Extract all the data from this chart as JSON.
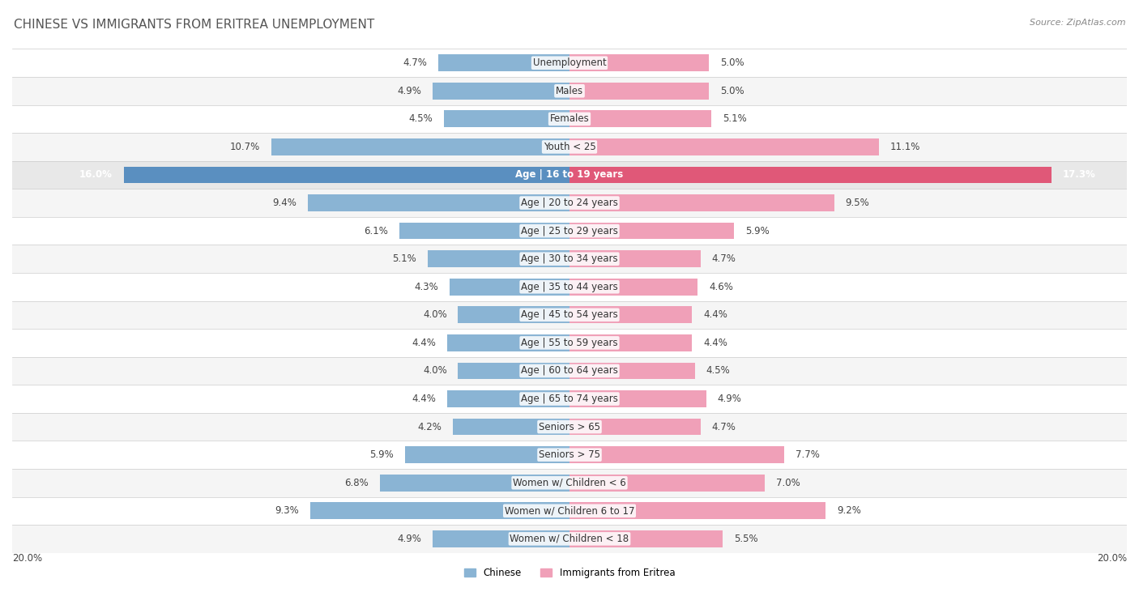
{
  "title": "CHINESE VS IMMIGRANTS FROM ERITREA UNEMPLOYMENT",
  "source": "Source: ZipAtlas.com",
  "categories": [
    "Unemployment",
    "Males",
    "Females",
    "Youth < 25",
    "Age | 16 to 19 years",
    "Age | 20 to 24 years",
    "Age | 25 to 29 years",
    "Age | 30 to 34 years",
    "Age | 35 to 44 years",
    "Age | 45 to 54 years",
    "Age | 55 to 59 years",
    "Age | 60 to 64 years",
    "Age | 65 to 74 years",
    "Seniors > 65",
    "Seniors > 75",
    "Women w/ Children < 6",
    "Women w/ Children 6 to 17",
    "Women w/ Children < 18"
  ],
  "chinese": [
    4.7,
    4.9,
    4.5,
    10.7,
    16.0,
    9.4,
    6.1,
    5.1,
    4.3,
    4.0,
    4.4,
    4.0,
    4.4,
    4.2,
    5.9,
    6.8,
    9.3,
    4.9
  ],
  "eritrea": [
    5.0,
    5.0,
    5.1,
    11.1,
    17.3,
    9.5,
    5.9,
    4.7,
    4.6,
    4.4,
    4.4,
    4.5,
    4.9,
    4.7,
    7.7,
    7.0,
    9.2,
    5.5
  ],
  "chinese_color": "#8ab4d4",
  "eritrea_color": "#f0a0b8",
  "chinese_highlight_color": "#5a8fc0",
  "eritrea_highlight_color": "#e05878",
  "row_color_odd": "#f5f5f5",
  "row_color_even": "#ffffff",
  "row_color_highlight": "#e8e8e8",
  "bg_color": "#ffffff",
  "highlight_row": 4,
  "max_val": 20.0,
  "legend_chinese": "Chinese",
  "legend_eritrea": "Immigrants from Eritrea",
  "title_fontsize": 11,
  "label_fontsize": 8.5,
  "value_fontsize": 8.5,
  "source_fontsize": 8
}
